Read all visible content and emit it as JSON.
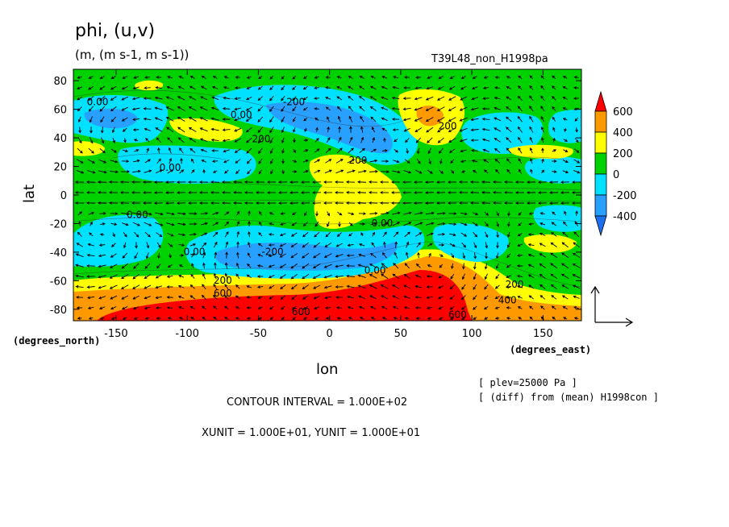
{
  "header": {
    "title": "phi, (u,v)",
    "units": "(m, (m s-1, m s-1))",
    "run_id": "T39L48_non_H1998pa"
  },
  "footer": {
    "plev": "[ plev=25000 Pa ]",
    "diff": "[ (diff) from (mean) H1998con ]",
    "contour_interval": "CONTOUR INTERVAL = 1.000E+02",
    "units_line": "XUNIT = 1.000E+01, YUNIT = 1.000E+01"
  },
  "chart_data": {
    "type": "heatmap",
    "title": "phi, (u,v)",
    "xlabel": "lon",
    "ylabel": "lat",
    "x_unit_label": "(degrees_east)",
    "y_unit_label": "(degrees_north)",
    "xlim": [
      -180,
      177
    ],
    "ylim": [
      -88,
      88
    ],
    "x_ticks": [
      -150,
      -100,
      -50,
      0,
      50,
      100,
      150
    ],
    "y_ticks": [
      -80,
      -60,
      -40,
      -20,
      0,
      20,
      40,
      60,
      80
    ],
    "colors": {
      "lt_-400": "#1e6ef0",
      "-400_-200": "#28a0ff",
      "-200_0": "#00e0ff",
      "0_200": "#00d200",
      "200_400": "#ffff00",
      "400_600": "#ff9900",
      "gt_600": "#ff0000"
    },
    "colorbar_labels": [
      "600",
      "400",
      "200",
      "0",
      "-200",
      "-400"
    ],
    "contour_labels": [
      {
        "text": "0.00",
        "lon": -163,
        "lat": 63
      },
      {
        "text": "-200",
        "lon": -25,
        "lat": 63
      },
      {
        "text": "0.00",
        "lon": -62,
        "lat": 54
      },
      {
        "text": "200",
        "lon": -48,
        "lat": 37
      },
      {
        "text": "0.00",
        "lon": -112,
        "lat": 17
      },
      {
        "text": "200",
        "lon": 83,
        "lat": 46
      },
      {
        "text": "200",
        "lon": 20,
        "lat": 22
      },
      {
        "text": "0.00",
        "lon": -135,
        "lat": -16
      },
      {
        "text": "0.00",
        "lon": 37,
        "lat": -22
      },
      {
        "text": "-200",
        "lon": -40,
        "lat": -42
      },
      {
        "text": "0.00",
        "lon": 32,
        "lat": -55
      },
      {
        "text": "0.00",
        "lon": -95,
        "lat": -42
      },
      {
        "text": "200",
        "lon": -75,
        "lat": -62
      },
      {
        "text": "600",
        "lon": -75,
        "lat": -71
      },
      {
        "text": "200",
        "lon": 130,
        "lat": -65
      },
      {
        "text": "400",
        "lon": 125,
        "lat": -76
      },
      {
        "text": "600",
        "lon": 90,
        "lat": -86
      },
      {
        "text": "600",
        "lon": -20,
        "lat": -84
      }
    ],
    "vector_reference": {
      "u": 10,
      "v": 10
    }
  }
}
